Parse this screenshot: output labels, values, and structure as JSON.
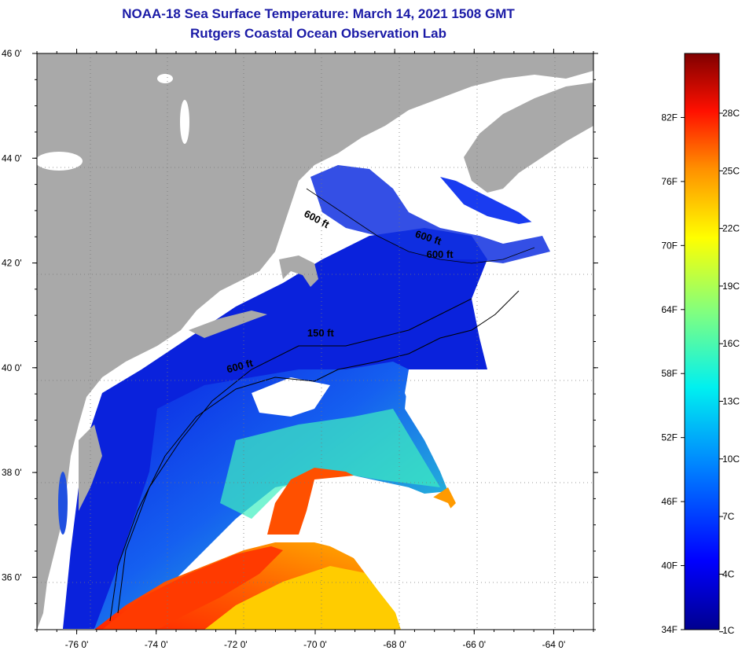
{
  "header": {
    "title": "NOAA-18 Sea Surface Temperature:  March 14, 2021 1508 GMT",
    "subtitle": "Rutgers Coastal Ocean Observation Lab"
  },
  "map": {
    "lat_labels": [
      "46 0'",
      "44 0'",
      "42 0'",
      "40 0'",
      "38 0'",
      "36 0'"
    ],
    "lat_values": [
      46,
      44,
      42,
      40,
      38,
      36
    ],
    "lon_labels": [
      "-76 0'",
      "-74 0'",
      "-72 0'",
      "-70 0'",
      "-68 0'",
      "-66 0'",
      "-64 0'"
    ],
    "lon_values": [
      -76,
      -74,
      -72,
      -70,
      -68,
      -66,
      -64
    ],
    "lat_range": [
      35,
      46
    ],
    "lon_range": [
      -77,
      -63
    ],
    "contour_labels": [
      "600 ft",
      "600 ft",
      "600 ft",
      "150 ft",
      "600 ft"
    ],
    "colors": {
      "land": "#a9a9a9",
      "cloud": "#ffffff",
      "cold": "#0a2ad6",
      "mid": "#2ff0c8",
      "warm": "#ff5a00"
    }
  },
  "colorbar": {
    "fahrenheit_labels": [
      "82F",
      "76F",
      "70F",
      "64F",
      "58F",
      "52F",
      "46F",
      "40F",
      "34F"
    ],
    "fahrenheit_values": [
      82,
      76,
      70,
      64,
      58,
      52,
      46,
      40,
      34
    ],
    "celsius_labels": [
      "28C",
      "25C",
      "22C",
      "19C",
      "16C",
      "13C",
      "10C",
      "7C",
      "4C",
      "1C"
    ],
    "celsius_values": [
      28,
      25,
      22,
      19,
      16,
      13,
      10,
      7,
      4,
      1
    ],
    "range_f": [
      34,
      88
    ]
  }
}
